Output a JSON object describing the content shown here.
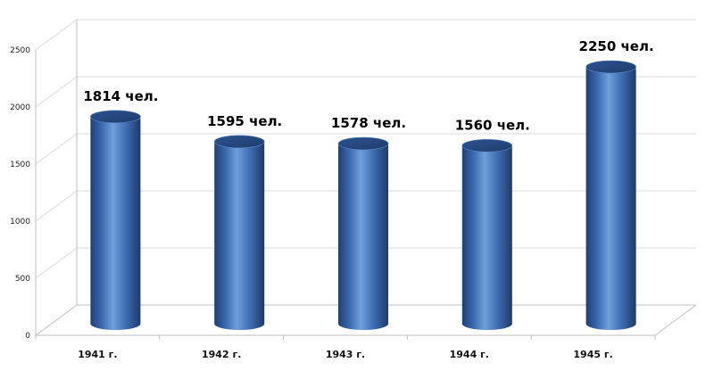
{
  "chart_data": {
    "type": "bar",
    "style": "3d-cylinder",
    "title": "",
    "xlabel": "",
    "ylabel": "",
    "categories": [
      "1941 г.",
      "1942 г.",
      "1943 г.",
      "1944 г.",
      "1945 г."
    ],
    "values": [
      1814,
      1595,
      1578,
      1560,
      2250
    ],
    "data_labels": [
      "1814 чел.",
      "1595 чел.",
      "1578 чел.",
      "1560 чел.",
      "2250 чел."
    ],
    "y_ticks": [
      "0",
      "500",
      "1000",
      "1500",
      "2000",
      "2500"
    ],
    "ylim": [
      0,
      2500
    ],
    "grid": true,
    "legend": "none",
    "bar_color": "#4472C4"
  }
}
